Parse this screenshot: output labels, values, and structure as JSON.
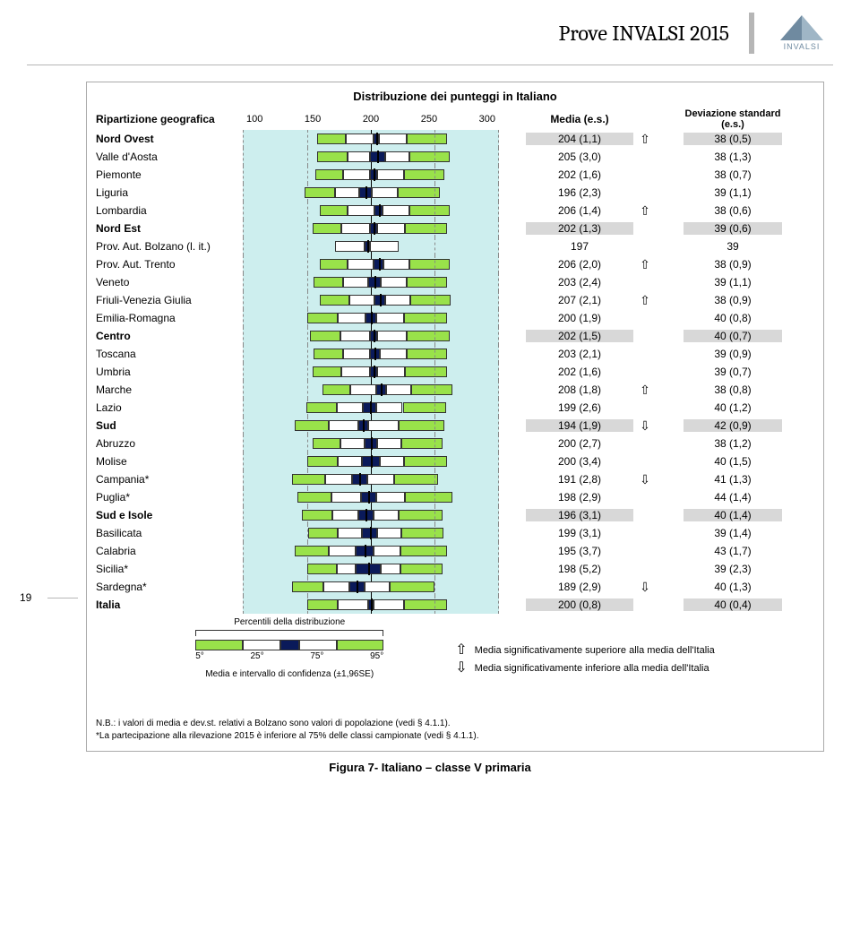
{
  "page": {
    "title": "Prove INVALSI 2015",
    "logo_text": "INVALSI",
    "page_number": "19",
    "caption": "Figura 7- Italiano – classe V primaria"
  },
  "chart": {
    "title": "Distribuzione dei punteggi in Italiano",
    "label_header": "Ripartizione geografica",
    "media_header": "Media (e.s.)",
    "dev_header": "Deviazione standard (e.s.)",
    "axis": {
      "min": 100,
      "max": 300,
      "ticks": [
        "100",
        "150",
        "200",
        "250",
        "300"
      ]
    },
    "plot_bg": "#cdeeee",
    "colors": {
      "p5_95": "#99e24a",
      "p25_75": "#ffffff",
      "ci": "#0a1a5a",
      "marker": "#000000"
    },
    "rows": [
      {
        "label": "Nord Ovest",
        "bold": true,
        "shade": true,
        "media": "204 (1,1)",
        "dev": "38 (0,5)",
        "arrow": "up",
        "p5": 158,
        "p25": 180,
        "ci_lo": 202,
        "m": 204,
        "ci_hi": 206,
        "p75": 228,
        "p95": 260
      },
      {
        "label": "Valle d'Aosta",
        "media": "205 (3,0)",
        "dev": "38 (1,3)",
        "p5": 158,
        "p25": 182,
        "ci_lo": 199,
        "m": 205,
        "ci_hi": 211,
        "p75": 230,
        "p95": 262
      },
      {
        "label": "Piemonte",
        "media": "202 (1,6)",
        "dev": "38 (0,7)",
        "p5": 156,
        "p25": 178,
        "ci_lo": 199,
        "m": 202,
        "ci_hi": 205,
        "p75": 226,
        "p95": 258
      },
      {
        "label": "Liguria",
        "media": "196 (2,3)",
        "dev": "39 (1,1)",
        "p5": 148,
        "p25": 172,
        "ci_lo": 191,
        "m": 196,
        "ci_hi": 201,
        "p75": 221,
        "p95": 254
      },
      {
        "label": "Lombardia",
        "media": "206 (1,4)",
        "dev": "38 (0,6)",
        "arrow": "up",
        "p5": 160,
        "p25": 182,
        "ci_lo": 203,
        "m": 206,
        "ci_hi": 209,
        "p75": 230,
        "p95": 262
      },
      {
        "label": "Nord Est",
        "bold": true,
        "shade": true,
        "media": "202 (1,3)",
        "dev": "39 (0,6)",
        "p5": 154,
        "p25": 177,
        "ci_lo": 199,
        "m": 202,
        "ci_hi": 205,
        "p75": 227,
        "p95": 260
      },
      {
        "label": "Prov. Aut. Bolzano (l. it.)",
        "media": "197",
        "dev": "39",
        "p25": 172,
        "ci_lo": 195,
        "m": 197,
        "ci_hi": 199,
        "p75": 222,
        "nobar": true
      },
      {
        "label": "Prov. Aut. Trento",
        "media": "206 (2,0)",
        "dev": "38 (0,9)",
        "arrow": "up",
        "p5": 160,
        "p25": 182,
        "ci_lo": 202,
        "m": 206,
        "ci_hi": 210,
        "p75": 230,
        "p95": 262
      },
      {
        "label": "Veneto",
        "media": "203 (2,4)",
        "dev": "39 (1,1)",
        "p5": 155,
        "p25": 178,
        "ci_lo": 198,
        "m": 203,
        "ci_hi": 208,
        "p75": 228,
        "p95": 260
      },
      {
        "label": "Friuli-Venezia Giulia",
        "media": "207 (2,1)",
        "dev": "38 (0,9)",
        "arrow": "up",
        "p5": 160,
        "p25": 183,
        "ci_lo": 203,
        "m": 207,
        "ci_hi": 211,
        "p75": 231,
        "p95": 263
      },
      {
        "label": "Emilia-Romagna",
        "media": "200 (1,9)",
        "dev": "40 (0,8)",
        "p5": 150,
        "p25": 174,
        "ci_lo": 196,
        "m": 200,
        "ci_hi": 204,
        "p75": 226,
        "p95": 260
      },
      {
        "label": "Centro",
        "bold": true,
        "shade": true,
        "media": "202 (1,5)",
        "dev": "40 (0,7)",
        "p5": 152,
        "p25": 176,
        "ci_lo": 199,
        "m": 202,
        "ci_hi": 205,
        "p75": 228,
        "p95": 262
      },
      {
        "label": "Toscana",
        "media": "203 (2,1)",
        "dev": "39 (0,9)",
        "p5": 155,
        "p25": 178,
        "ci_lo": 199,
        "m": 203,
        "ci_hi": 207,
        "p75": 228,
        "p95": 260
      },
      {
        "label": "Umbria",
        "media": "202 (1,6)",
        "dev": "39 (0,7)",
        "p5": 154,
        "p25": 177,
        "ci_lo": 199,
        "m": 202,
        "ci_hi": 205,
        "p75": 227,
        "p95": 260
      },
      {
        "label": "Marche",
        "media": "208 (1,8)",
        "dev": "38 (0,8)",
        "arrow": "up",
        "p5": 162,
        "p25": 184,
        "ci_lo": 204,
        "m": 208,
        "ci_hi": 212,
        "p75": 232,
        "p95": 264
      },
      {
        "label": "Lazio",
        "media": "199 (2,6)",
        "dev": "40 (1,2)",
        "p5": 149,
        "p25": 173,
        "ci_lo": 194,
        "m": 199,
        "ci_hi": 204,
        "p75": 225,
        "p95": 259
      },
      {
        "label": "Sud",
        "bold": true,
        "shade": true,
        "media": "194 (1,9)",
        "dev": "42 (0,9)",
        "arrow": "down",
        "p5": 140,
        "p25": 167,
        "ci_lo": 190,
        "m": 194,
        "ci_hi": 198,
        "p75": 222,
        "p95": 258
      },
      {
        "label": "Abruzzo",
        "media": "200 (2,7)",
        "dev": "38 (1,2)",
        "p5": 154,
        "p25": 176,
        "ci_lo": 195,
        "m": 200,
        "ci_hi": 205,
        "p75": 224,
        "p95": 256
      },
      {
        "label": "Molise",
        "media": "200 (3,4)",
        "dev": "40 (1,5)",
        "p5": 150,
        "p25": 174,
        "ci_lo": 193,
        "m": 200,
        "ci_hi": 207,
        "p75": 226,
        "p95": 260
      },
      {
        "label": "Campania*",
        "media": "191 (2,8)",
        "dev": "41 (1,3)",
        "arrow": "down",
        "p5": 138,
        "p25": 164,
        "ci_lo": 185,
        "m": 191,
        "ci_hi": 197,
        "p75": 218,
        "p95": 253
      },
      {
        "label": "Puglia*",
        "media": "198 (2,9)",
        "dev": "44 (1,4)",
        "p5": 142,
        "p25": 169,
        "ci_lo": 192,
        "m": 198,
        "ci_hi": 204,
        "p75": 227,
        "p95": 264
      },
      {
        "label": "Sud e Isole",
        "bold": true,
        "shade": true,
        "media": "196 (3,1)",
        "dev": "40 (1,4)",
        "p5": 146,
        "p25": 170,
        "ci_lo": 190,
        "m": 196,
        "ci_hi": 202,
        "p75": 222,
        "p95": 256
      },
      {
        "label": "Basilicata",
        "media": "199 (3,1)",
        "dev": "39 (1,4)",
        "p5": 151,
        "p25": 174,
        "ci_lo": 193,
        "m": 199,
        "ci_hi": 205,
        "p75": 224,
        "p95": 257
      },
      {
        "label": "Calabria",
        "media": "195 (3,7)",
        "dev": "43 (1,7)",
        "p5": 140,
        "p25": 167,
        "ci_lo": 188,
        "m": 195,
        "ci_hi": 202,
        "p75": 223,
        "p95": 260
      },
      {
        "label": "Sicilia*",
        "media": "198 (5,2)",
        "dev": "39 (2,3)",
        "p5": 150,
        "p25": 173,
        "ci_lo": 188,
        "m": 198,
        "ci_hi": 208,
        "p75": 223,
        "p95": 256
      },
      {
        "label": "Sardegna*",
        "media": "189 (2,9)",
        "dev": "40 (1,3)",
        "arrow": "down",
        "p5": 138,
        "p25": 163,
        "ci_lo": 183,
        "m": 189,
        "ci_hi": 195,
        "p75": 215,
        "p95": 250
      },
      {
        "label": "Italia",
        "bold": true,
        "shade": true,
        "media": "200 (0,8)",
        "dev": "40 (0,4)",
        "p5": 150,
        "p25": 174,
        "ci_lo": 198,
        "m": 200,
        "ci_hi": 202,
        "p75": 226,
        "p95": 260
      }
    ],
    "legend": {
      "perc_caption": "Percentili della distribuzione",
      "perc_ticks": [
        "5°",
        "25°",
        "75°",
        "95°"
      ],
      "ci_caption": "Media e intervallo di confidenza (±1,96SE)",
      "up_text": "Media significativamente superiore alla media dell'Italia",
      "down_text": "Media significativamente inferiore alla media dell'Italia"
    },
    "footnotes": [
      "N.B.: i valori di media e dev.st. relativi a Bolzano sono valori di popolazione (vedi § 4.1.1).",
      "*La partecipazione alla rilevazione 2015 è inferiore al 75% delle classi campionate (vedi § 4.1.1)."
    ]
  }
}
